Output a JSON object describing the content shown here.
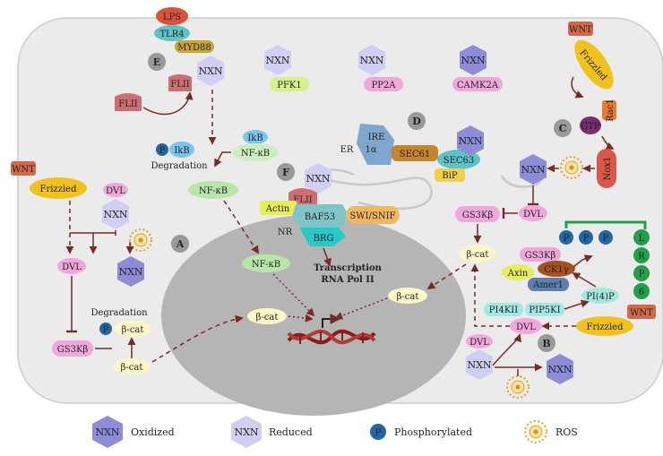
{
  "sections": {
    "A": "A",
    "B": "B",
    "C": "C",
    "D": "D",
    "E": "E",
    "F": "F"
  },
  "proteins": {
    "nxn": "NXN",
    "lps": "LPS",
    "tlr4": "TLR4",
    "myd88": "MYD88",
    "flii": "FLII",
    "pfk1": "PFK1",
    "pp2a": "PP2A",
    "camk2a": "CAMK2A",
    "ikb": "IkB",
    "nfkb": "NF-κB",
    "wnt": "WNT",
    "frizzled": "Frizzled",
    "dvl": "DVL",
    "gsk3b": "GS3Kβ",
    "bcat": "β-cat",
    "rac1": "Rac1",
    "gtp": "GTP",
    "nox1": "Nox1",
    "ire1a_1": "IRE",
    "ire1a_2": "1α",
    "sec61": "SEC61",
    "sec63": "SEC63",
    "bip": "BiP",
    "er": "ER",
    "nr": "NR",
    "actin": "Actin",
    "baf53": "BAF53",
    "swisnif": "SWI/SNIF",
    "brg": "BRG",
    "axin": "Axin",
    "ck1g": "CK1γ",
    "amer1": "Amer1",
    "pi4p": "PI(4)P",
    "pi4kii": "PI4KII",
    "pip5ki": "PIP5KI",
    "lrp6": [
      "L",
      "R",
      "P",
      "6"
    ],
    "p": "P"
  },
  "labels": {
    "degradation": "Degradation",
    "transcription_1": "Transcription",
    "transcription_2": "RNA Pol II"
  },
  "legend": {
    "oxidized": "Oxidized",
    "reduced": "Reduced",
    "phosphorylated": "Phosphorylated",
    "ros": "ROS"
  },
  "colors": {
    "arrow": "#7a2a24",
    "cell": "#ebebeb",
    "nucleus": "#b5b5b5",
    "nxn_ox": "#8c8cd9",
    "nxn_red": "#cfcff5",
    "p": "#2266a8"
  }
}
